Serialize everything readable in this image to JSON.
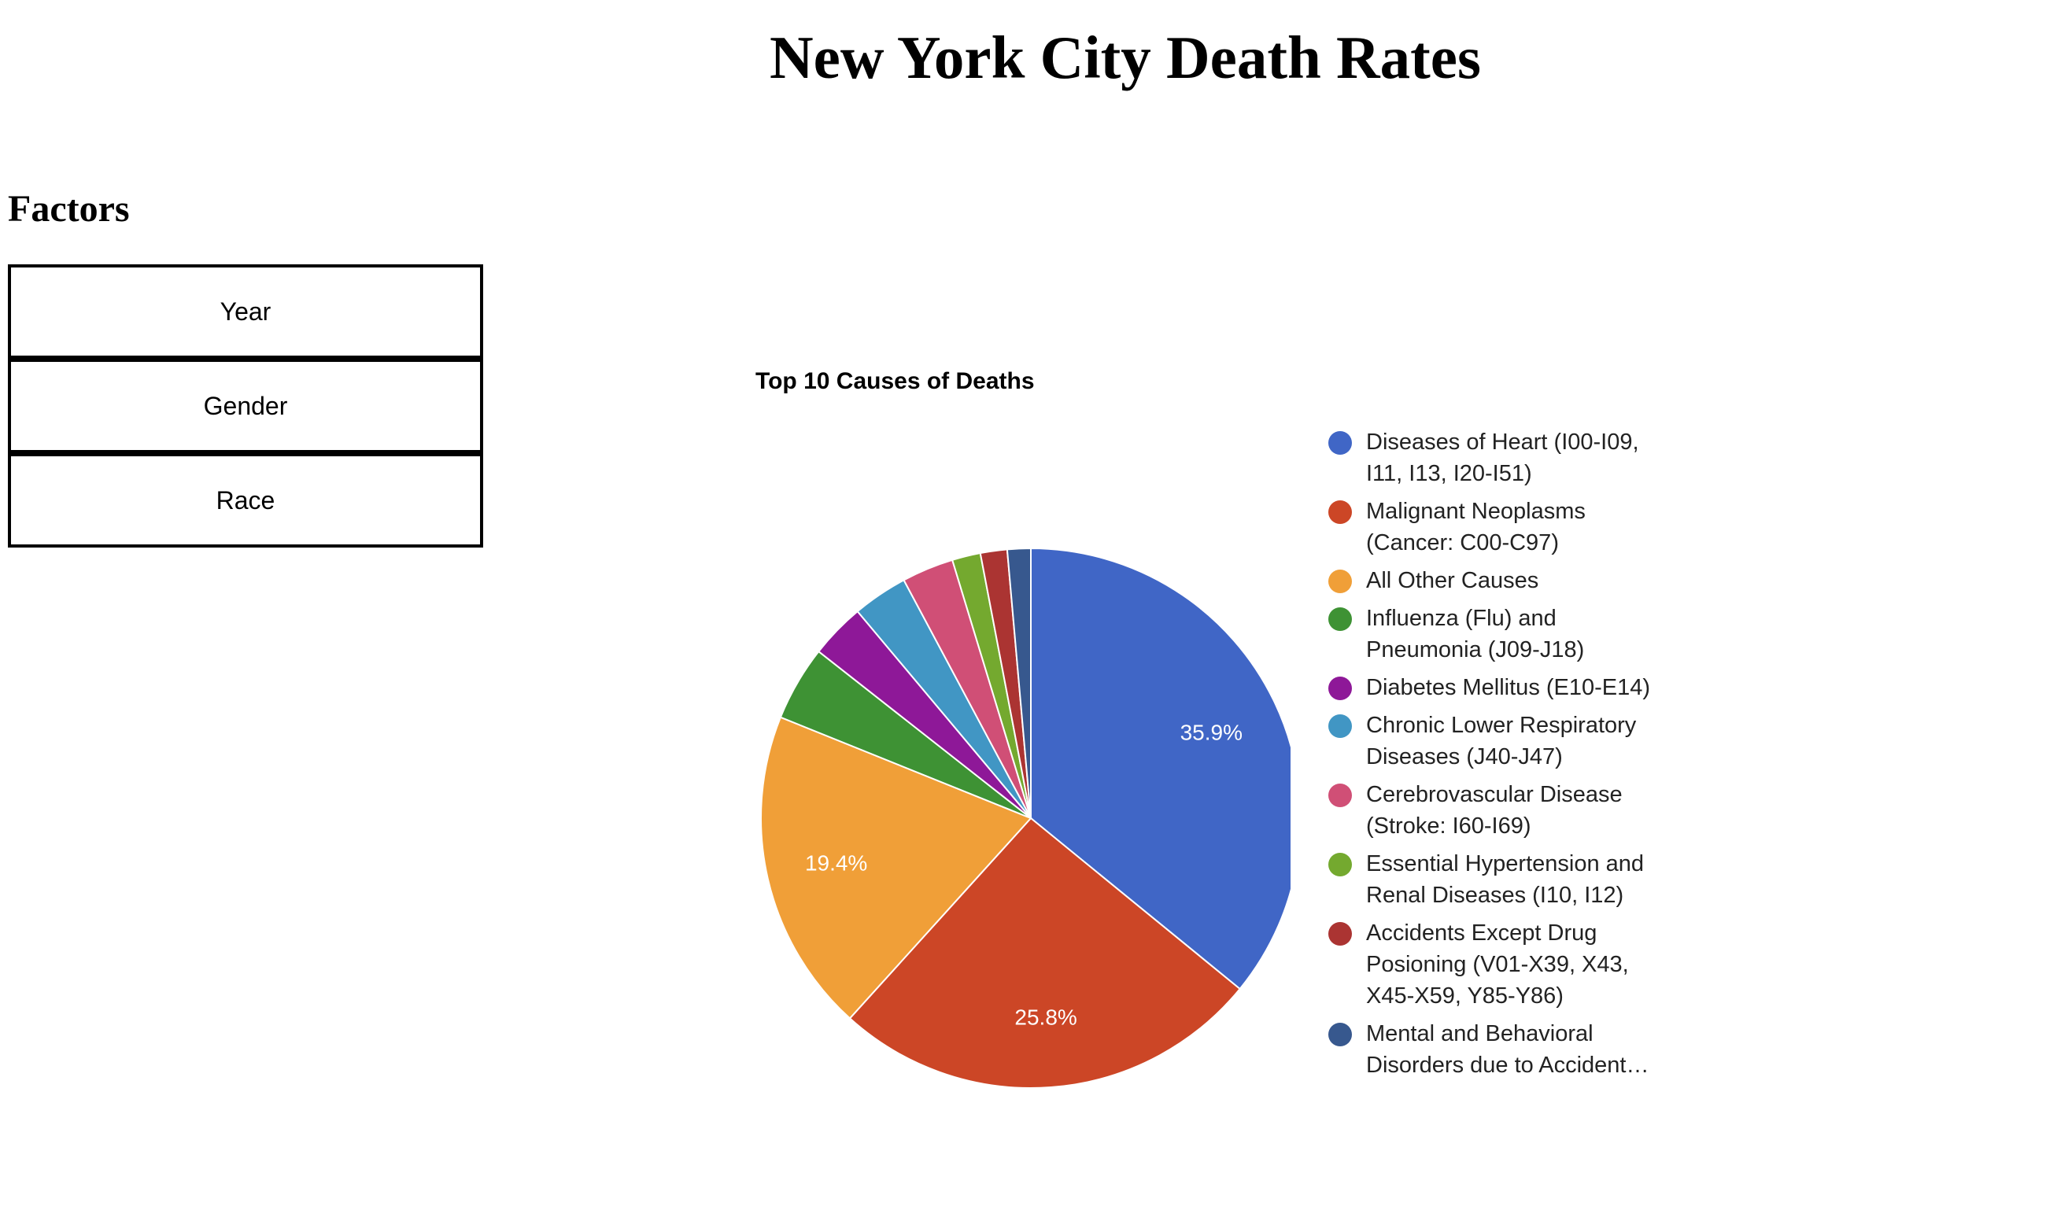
{
  "page": {
    "title": "New York City Death Rates"
  },
  "factors": {
    "heading": "Factors",
    "buttons": [
      {
        "label": "Year"
      },
      {
        "label": "Gender"
      },
      {
        "label": "Race"
      }
    ]
  },
  "chart_data": {
    "type": "pie",
    "title": "Top 10 Causes of Deaths",
    "legend_position": "right",
    "slices": [
      {
        "name": "Diseases of Heart (I00-I09, I11, I13, I20-I51)",
        "value": 35.9,
        "label": "35.9%",
        "color": "#4066c6"
      },
      {
        "name": "Malignant Neoplasms (Cancer: C00-C97)",
        "value": 25.8,
        "label": "25.8%",
        "color": "#cc4626"
      },
      {
        "name": "All Other Causes",
        "value": 19.4,
        "label": "19.4%",
        "color": "#f09f38"
      },
      {
        "name": "Influenza (Flu) and Pneumonia (J09-J18)",
        "value": 4.5,
        "label": "",
        "color": "#3e9234"
      },
      {
        "name": "Diabetes Mellitus (E10-E14)",
        "value": 3.3,
        "label": "",
        "color": "#8e1898"
      },
      {
        "name": "Chronic Lower Respiratory Diseases (J40-J47)",
        "value": 3.3,
        "label": "",
        "color": "#4196c4"
      },
      {
        "name": "Cerebrovascular Disease (Stroke: I60-I69)",
        "value": 3.1,
        "label": "",
        "color": "#d04f76"
      },
      {
        "name": "Essential Hypertension and Renal Diseases (I10, I12)",
        "value": 1.7,
        "label": "",
        "color": "#74a92f"
      },
      {
        "name": "Accidents Except Drug Posioning (V01-X39, X43, X45-X59, Y85-Y86)",
        "value": 1.6,
        "label": "",
        "color": "#ab3432"
      },
      {
        "name": "Mental and Behavioral Disorders due to Accidental Poisoning and Other Psychoactive Substance Use",
        "value": 1.4,
        "label": "",
        "color": "#37588e"
      }
    ]
  }
}
